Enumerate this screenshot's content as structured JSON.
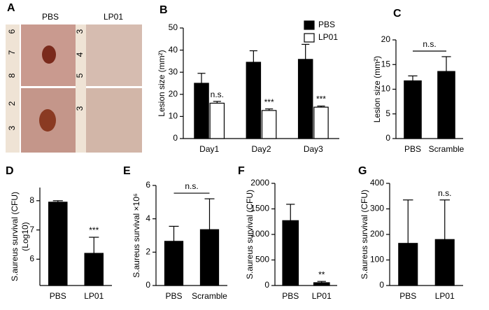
{
  "photo_panel": {
    "panel_label": "A",
    "columns": [
      "PBS",
      "LP01"
    ],
    "left_ruler_labels": [
      "6",
      "7",
      "8",
      "2",
      "3"
    ],
    "right_ruler_labels": [
      "3",
      "4",
      "5",
      "3"
    ]
  },
  "chart_data": [
    {
      "type": "bar",
      "panel_label": "B",
      "ylabel": "Lesion size (mm²)",
      "categories": [
        "Day1",
        "Day2",
        "Day3"
      ],
      "series": [
        {
          "name": "PBS",
          "color": "#000000",
          "values": [
            25,
            34.5,
            35.8
          ],
          "errors": [
            4.5,
            5.2,
            6.8
          ],
          "annotations": [
            null,
            null,
            null
          ]
        },
        {
          "name": "LP01",
          "color": "#ffffff",
          "values": [
            16,
            12.7,
            14.2
          ],
          "errors": [
            0.8,
            0.7,
            0.5
          ],
          "annotations": [
            "n.s.",
            "***",
            "***"
          ]
        }
      ],
      "ylim": [
        0,
        50
      ],
      "yticks": [
        0,
        10,
        20,
        30,
        40,
        50
      ]
    },
    {
      "type": "bar",
      "panel_label": "C",
      "ylabel": "Lesion size (mm²)",
      "categories": [
        "PBS",
        "Scramble"
      ],
      "values": [
        11.7,
        13.6
      ],
      "errors": [
        1,
        3
      ],
      "color": "#000000",
      "bracket_label": "n.s.",
      "ylim": [
        0,
        20
      ],
      "yticks": [
        0,
        5,
        10,
        15,
        20
      ]
    },
    {
      "type": "bar",
      "panel_label": "D",
      "ylabel": [
        "S.aureus survival (CFU)",
        "(Log10)"
      ],
      "categories": [
        "PBS",
        "LP01"
      ],
      "values": [
        7.95,
        6.2
      ],
      "errors": [
        0.05,
        0.55
      ],
      "annotations": [
        null,
        "***"
      ],
      "color": "#000000",
      "ylim": [
        5.1,
        8.45
      ],
      "yticks": [
        6,
        7,
        8
      ]
    },
    {
      "type": "bar",
      "panel_label": "E",
      "ylabel": "S.aureus survival ×10⁶",
      "categories": [
        "PBS",
        "Scramble"
      ],
      "values": [
        2.65,
        3.35
      ],
      "errors": [
        0.9,
        1.85
      ],
      "color": "#000000",
      "bracket_label": "n.s.",
      "ylim": [
        0,
        6
      ],
      "yticks": [
        0,
        2,
        4,
        6
      ]
    },
    {
      "type": "bar",
      "panel_label": "F",
      "ylabel": "S.aureus survival (CFU)",
      "categories": [
        "PBS",
        "LP01"
      ],
      "values": [
        1270,
        55
      ],
      "errors": [
        320,
        25
      ],
      "annotations": [
        null,
        "**"
      ],
      "color": "#000000",
      "ylim": [
        0,
        2000
      ],
      "yticks": [
        0,
        500,
        1000,
        1500,
        2000
      ]
    },
    {
      "type": "bar",
      "panel_label": "G",
      "ylabel": "S.aureus survival (CFU)",
      "categories": [
        "PBS",
        "LP01"
      ],
      "values": [
        165,
        180
      ],
      "errors": [
        170,
        155
      ],
      "annotations": [
        null,
        "n.s."
      ],
      "color": "#000000",
      "ylim": [
        0,
        400
      ],
      "yticks": [
        0,
        100,
        200,
        300,
        400
      ]
    }
  ]
}
